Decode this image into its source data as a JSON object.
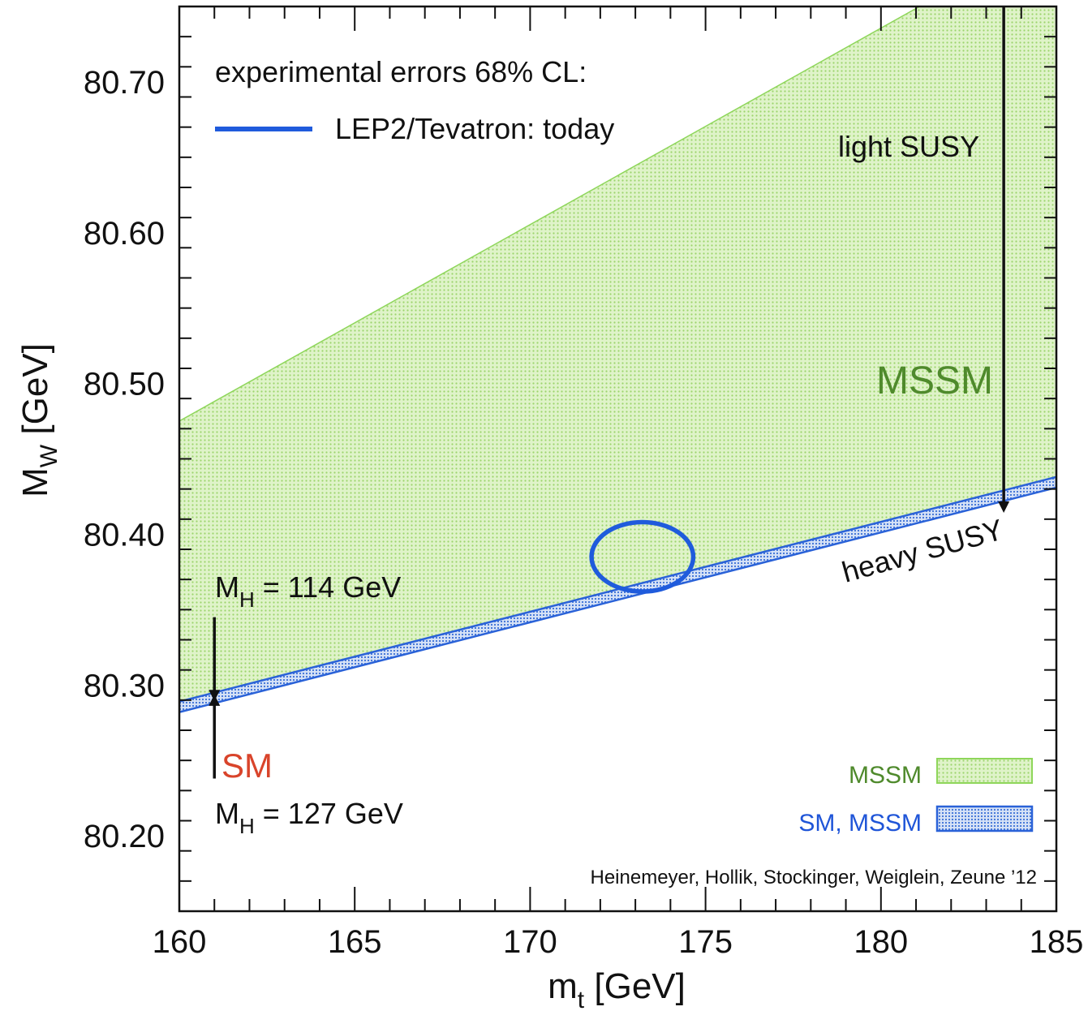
{
  "chart_data": {
    "type": "area",
    "xlabel": "m",
    "xlabel_sub": "t",
    "xlabel_unit": " [GeV]",
    "ylabel": "M",
    "ylabel_sub": "W",
    "ylabel_unit": " [GeV]",
    "xlim": [
      160,
      185
    ],
    "ylim": [
      80.15,
      80.75
    ],
    "x_ticks": [
      160,
      165,
      170,
      175,
      180,
      185
    ],
    "y_ticks": [
      80.2,
      80.3,
      80.4,
      80.5,
      80.6,
      80.7
    ],
    "x_tick_labels": [
      "160",
      "165",
      "170",
      "175",
      "180",
      "185"
    ],
    "y_tick_labels": [
      "80.20",
      "80.30",
      "80.40",
      "80.50",
      "80.60",
      "80.70"
    ],
    "grid": false,
    "series": [
      {
        "name": "MSSM",
        "kind": "band",
        "upper": [
          [
            160,
            80.475
          ],
          [
            181.1,
            80.75
          ],
          [
            185,
            80.75
          ]
        ],
        "lower": [
          [
            160,
            80.289
          ],
          [
            185,
            80.438
          ]
        ],
        "color": "#a7e07a",
        "edge": "#8ed65a"
      },
      {
        "name": "SM, MSSM",
        "kind": "band",
        "upper": [
          [
            160,
            80.289
          ],
          [
            185,
            80.438
          ]
        ],
        "lower": [
          [
            160,
            80.282
          ],
          [
            185,
            80.431
          ]
        ],
        "color": "#5a86d8",
        "edge": "#2a62d8"
      }
    ],
    "ellipse": {
      "label": "LEP2/Tevatron: today",
      "cx": 173.2,
      "cy": 80.385,
      "rx": 1.45,
      "ry": 0.023,
      "color": "#1f5bdc"
    },
    "legend_title": "experimental errors 68% CL:",
    "legend": [
      {
        "label": "MSSM",
        "color": "#4f8a2c"
      },
      {
        "label": "SM, MSSM",
        "color": "#1f55d8"
      }
    ],
    "annotations": {
      "mssm": {
        "text": "MSSM",
        "color": "#4f8a2c"
      },
      "light_susy": "light SUSY",
      "heavy_susy": "heavy SUSY",
      "sm": {
        "text": "SM",
        "color": "#d9442b"
      },
      "mh_114": {
        "prefix": "M",
        "sub": "H",
        "rest": " = 114 GeV"
      },
      "mh_127": {
        "prefix": "M",
        "sub": "H",
        "rest": " = 127 GeV"
      },
      "credit": "Heinemeyer, Hollik, Stockinger, Weiglein, Zeune ’12"
    },
    "arrows": [
      {
        "name": "light-susy-arrow",
        "x": 183.5,
        "y_from": 80.75,
        "y_to": 80.418
      },
      {
        "name": "mh114-arrow",
        "x": 161,
        "y_from": 80.345,
        "y_to": 80.293
      },
      {
        "name": "mh127-arrow",
        "x": 161,
        "y_from": 80.238,
        "y_to": 80.29
      }
    ]
  }
}
